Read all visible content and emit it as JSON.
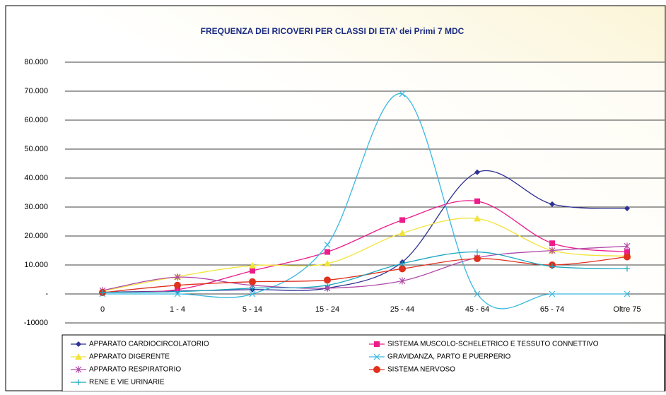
{
  "chart_data": {
    "type": "line",
    "title": "FREQUENZA DEI RICOVERI PER CLASSI DI ETA’ dei Primi 7 MDC",
    "categories": [
      "0",
      "1 - 4",
      "5 - 14",
      "15 - 24",
      "25 - 44",
      "45 - 64",
      "65 - 74",
      "Oltre 75"
    ],
    "ylim": [
      -10000,
      80000
    ],
    "yticks": [
      {
        "value": -10000,
        "label": "-10000"
      },
      {
        "value": 0,
        "label": "-"
      },
      {
        "value": 10000,
        "label": "10.000"
      },
      {
        "value": 20000,
        "label": "20.000"
      },
      {
        "value": 30000,
        "label": "30.000"
      },
      {
        "value": 40000,
        "label": "40.000"
      },
      {
        "value": 50000,
        "label": "50.000"
      },
      {
        "value": 60000,
        "label": "60.000"
      },
      {
        "value": 70000,
        "label": "70.000"
      },
      {
        "value": 80000,
        "label": "80.000"
      }
    ],
    "grid": true,
    "smooth": true,
    "legend": "bottom",
    "series": [
      {
        "name": "APPARATO CARDIOCIRCOLATORIO",
        "color": "#2e3192",
        "marker": "diamond",
        "values": [
          600,
          1000,
          1500,
          2000,
          11000,
          42000,
          31000,
          29500
        ]
      },
      {
        "name": "SISTEMA MUSCOLO-SCHELETRICO E TESSUTO CONNETTIVO",
        "color": "#ec1c8c",
        "marker": "square",
        "values": [
          500,
          1500,
          8000,
          14500,
          25500,
          32000,
          17500,
          14500
        ]
      },
      {
        "name": "APPARATO DIGERENTE",
        "color": "#f2e33a",
        "marker": "triangle",
        "values": [
          1000,
          6000,
          9800,
          10500,
          21000,
          26000,
          15000,
          13000
        ]
      },
      {
        "name": "GRAVIDANZA, PARTO E PUERPERIO",
        "color": "#3ab8e0",
        "marker": "x",
        "values": [
          0,
          0,
          0,
          17000,
          69000,
          0,
          0,
          0
        ]
      },
      {
        "name": "APPARATO RESPIRATORIO",
        "color": "#b04aa8",
        "marker": "star",
        "values": [
          1200,
          5800,
          3000,
          2000,
          4500,
          12500,
          15000,
          16500
        ]
      },
      {
        "name": "SISTEMA NERVOSO",
        "color": "#e0301e",
        "marker": "circle",
        "values": [
          500,
          3000,
          4200,
          4800,
          8700,
          12200,
          10000,
          12800
        ]
      },
      {
        "name": "RENE E VIE URINARIE",
        "color": "#1aa7c0",
        "marker": "plus",
        "values": [
          500,
          800,
          2000,
          3000,
          10500,
          14500,
          9500,
          8700
        ]
      }
    ]
  }
}
